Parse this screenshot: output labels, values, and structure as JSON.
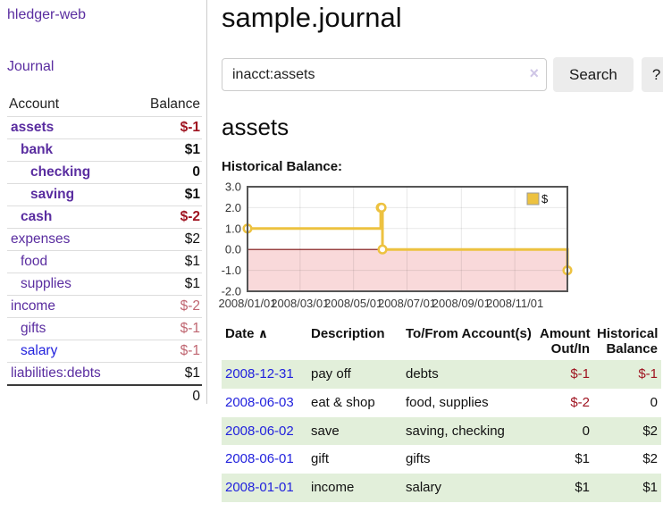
{
  "app": {
    "name": "hledger-web"
  },
  "sidebar": {
    "nav": {
      "journal_label": "Journal"
    },
    "table": {
      "account_header": "Account",
      "balance_header": "Balance",
      "accounts": [
        {
          "name": "assets",
          "depth": 1,
          "bold": true,
          "balance": "$-1",
          "balance_color": "negative"
        },
        {
          "name": "bank",
          "depth": 2,
          "bold": true,
          "balance": "$1",
          "balance_color": "normal"
        },
        {
          "name": "checking",
          "depth": 3,
          "bold": true,
          "balance": "0",
          "balance_color": "normal"
        },
        {
          "name": "saving",
          "depth": 3,
          "bold": true,
          "balance": "$1",
          "balance_color": "normal"
        },
        {
          "name": "cash",
          "depth": 2,
          "bold": true,
          "balance": "$-2",
          "balance_color": "negative"
        },
        {
          "name": "expenses",
          "depth": 1,
          "bold": false,
          "balance": "$2",
          "balance_color": "normal"
        },
        {
          "name": "food",
          "depth": 2,
          "bold": false,
          "balance": "$1",
          "balance_color": "normal"
        },
        {
          "name": "supplies",
          "depth": 2,
          "bold": false,
          "balance": "$1",
          "balance_color": "normal"
        },
        {
          "name": "income",
          "depth": 1,
          "bold": false,
          "balance": "$-2",
          "balance_color": "negative-faint"
        },
        {
          "name": "gifts",
          "depth": 2,
          "bold": false,
          "balance": "$-1",
          "balance_color": "negative-faint"
        },
        {
          "name": "salary",
          "depth": 2,
          "bold": false,
          "balance": "$-1",
          "balance_color": "negative-faint",
          "link_style": "unvisited"
        },
        {
          "name": "liabilities:debts",
          "depth": 1,
          "bold": false,
          "balance": "$1",
          "balance_color": "normal"
        }
      ],
      "total": "0"
    }
  },
  "header": {
    "title": "sample.journal"
  },
  "search": {
    "value": "inacct:assets",
    "clear_icon": "×",
    "search_label": "Search",
    "help_label": "?"
  },
  "account_view": {
    "heading": "assets",
    "chart_label": "Historical Balance:"
  },
  "chart_data": {
    "type": "line",
    "title": "Historical Balance",
    "step": true,
    "series": [
      {
        "name": "$",
        "color": "#edc240",
        "points": [
          [
            "2008-01-01",
            1
          ],
          [
            "2008-06-01",
            2
          ],
          [
            "2008-06-02",
            2
          ],
          [
            "2008-06-03",
            0
          ],
          [
            "2008-12-31",
            -1
          ]
        ]
      }
    ],
    "x_ticks": [
      "2008/01/01",
      "2008/03/01",
      "2008/05/01",
      "2008/07/01",
      "2008/09/01",
      "2008/11/01"
    ],
    "y_ticks": [
      "3.0",
      "2.0",
      "1.0",
      "0.0",
      "-1.0",
      "-2.0"
    ],
    "ylim": [
      -2,
      3
    ],
    "xlim": [
      "2008-01-01",
      "2008-12-31"
    ],
    "grid": true,
    "legend": {
      "label": "$",
      "position": "top-right"
    },
    "negative_region_fill": "#f9d9da",
    "zero_line_color": "#7b1010"
  },
  "register_table": {
    "sort_icon": "∧",
    "columns": [
      {
        "label": "Date"
      },
      {
        "label": "Description"
      },
      {
        "label": "To/From Account(s)"
      },
      {
        "label": "Amount Out/In"
      },
      {
        "label": "Historical Balance"
      }
    ],
    "rows": [
      {
        "date": "2008-12-31",
        "description": "pay off",
        "accounts": "debts",
        "amount": "$-1",
        "amount_color": "negative",
        "balance": "$-1",
        "balance_color": "negative"
      },
      {
        "date": "2008-06-03",
        "description": "eat & shop",
        "accounts": "food, supplies",
        "amount": "$-2",
        "amount_color": "negative",
        "balance": "0",
        "balance_color": "normal"
      },
      {
        "date": "2008-06-02",
        "description": "save",
        "accounts": "saving, checking",
        "amount": "0",
        "amount_color": "normal",
        "balance": "$2",
        "balance_color": "normal"
      },
      {
        "date": "2008-06-01",
        "description": "gift",
        "accounts": "gifts",
        "amount": "$1",
        "amount_color": "normal",
        "balance": "$2",
        "balance_color": "normal"
      },
      {
        "date": "2008-01-01",
        "description": "income",
        "accounts": "salary",
        "amount": "$1",
        "amount_color": "normal",
        "balance": "$1",
        "balance_color": "normal"
      }
    ]
  },
  "colors": {
    "accent_purple": "#5a2da0",
    "link_blue": "#2222dd",
    "negative_red": "#9f1320",
    "negative_faint_red": "#bf6570",
    "row_green": "#e2efda",
    "chart_gold": "#edc240",
    "chart_negative_fill": "#f9d9da",
    "chart_zero_line": "#7b1010",
    "button_gray": "#ececec"
  }
}
